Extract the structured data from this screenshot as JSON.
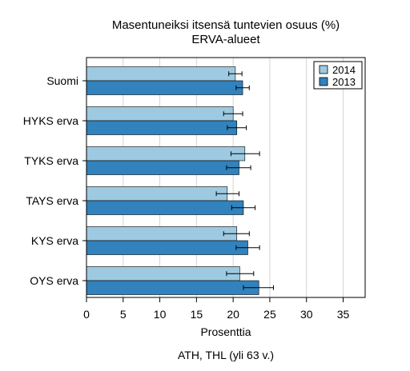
{
  "chart_data": {
    "type": "bar",
    "orientation": "horizontal",
    "title": "Masentuneiksi itsensä tuntevien osuus (%)",
    "subtitle": "ERVA-alueet",
    "xlabel": "Prosenttia",
    "source": "ATH, THL (yli 63 v.)",
    "xlim": [
      0,
      38
    ],
    "xticks": [
      0,
      5,
      10,
      15,
      20,
      25,
      30,
      35
    ],
    "categories": [
      "Suomi",
      "HYKS erva",
      "TYKS erva",
      "TAYS erva",
      "KYS erva",
      "OYS erva"
    ],
    "series": [
      {
        "name": "2014",
        "color": "#9ecae1",
        "values": [
          20.3,
          20.0,
          21.6,
          19.2,
          20.5,
          20.9
        ],
        "ci_low": [
          19.4,
          18.7,
          19.7,
          17.7,
          18.7,
          19.1
        ],
        "ci_high": [
          21.2,
          21.3,
          23.6,
          20.8,
          22.2,
          22.8
        ]
      },
      {
        "name": "2013",
        "color": "#3182bd",
        "values": [
          21.3,
          20.5,
          20.8,
          21.4,
          22.0,
          23.5
        ],
        "ci_low": [
          20.4,
          19.2,
          19.1,
          19.8,
          20.4,
          21.4
        ],
        "ci_high": [
          22.2,
          21.8,
          22.4,
          23.0,
          23.6,
          25.5
        ]
      }
    ],
    "grid": true,
    "legend_position": "top-right"
  }
}
